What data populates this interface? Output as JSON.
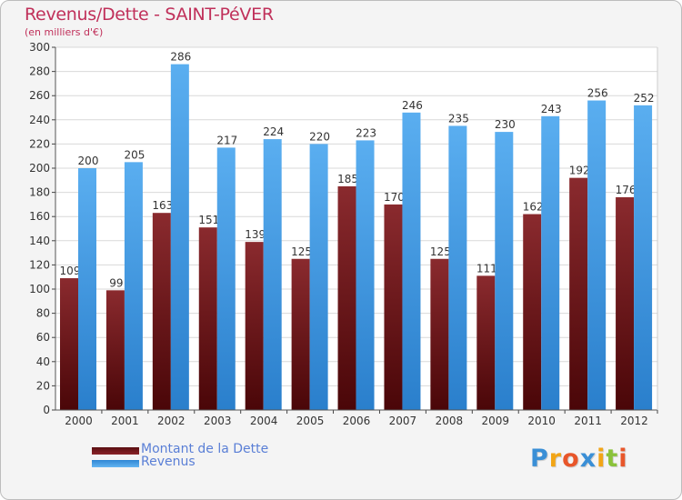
{
  "chart_data": {
    "type": "bar",
    "title": "Revenus/Dette - SAINT-PéVER",
    "subtitle": "(en milliers d'€)",
    "categories": [
      "2000",
      "2001",
      "2002",
      "2003",
      "2004",
      "2005",
      "2006",
      "2007",
      "2008",
      "2009",
      "2010",
      "2011",
      "2012"
    ],
    "series": [
      {
        "name": "Montant de la Dette",
        "color": "#7a1a1e",
        "values": [
          109,
          99,
          163,
          151,
          139,
          125,
          185,
          170,
          125,
          111,
          162,
          192,
          176
        ]
      },
      {
        "name": "Revenus",
        "color": "#4a9ee6",
        "values": [
          200,
          205,
          286,
          217,
          224,
          220,
          223,
          246,
          235,
          230,
          243,
          256,
          252
        ]
      }
    ],
    "ylim": [
      0,
      300
    ],
    "ytick_step": 20,
    "grid": true,
    "legend": "bottom-left"
  },
  "logo": {
    "text": "Proxiti",
    "letters": [
      "P",
      "r",
      "o",
      "x",
      "i",
      "t",
      "i"
    ],
    "colors": [
      "#3a8fd6",
      "#f2a516",
      "#e8562a",
      "#3a8fd6",
      "#f2a516",
      "#8ac23a",
      "#e8562a"
    ]
  }
}
